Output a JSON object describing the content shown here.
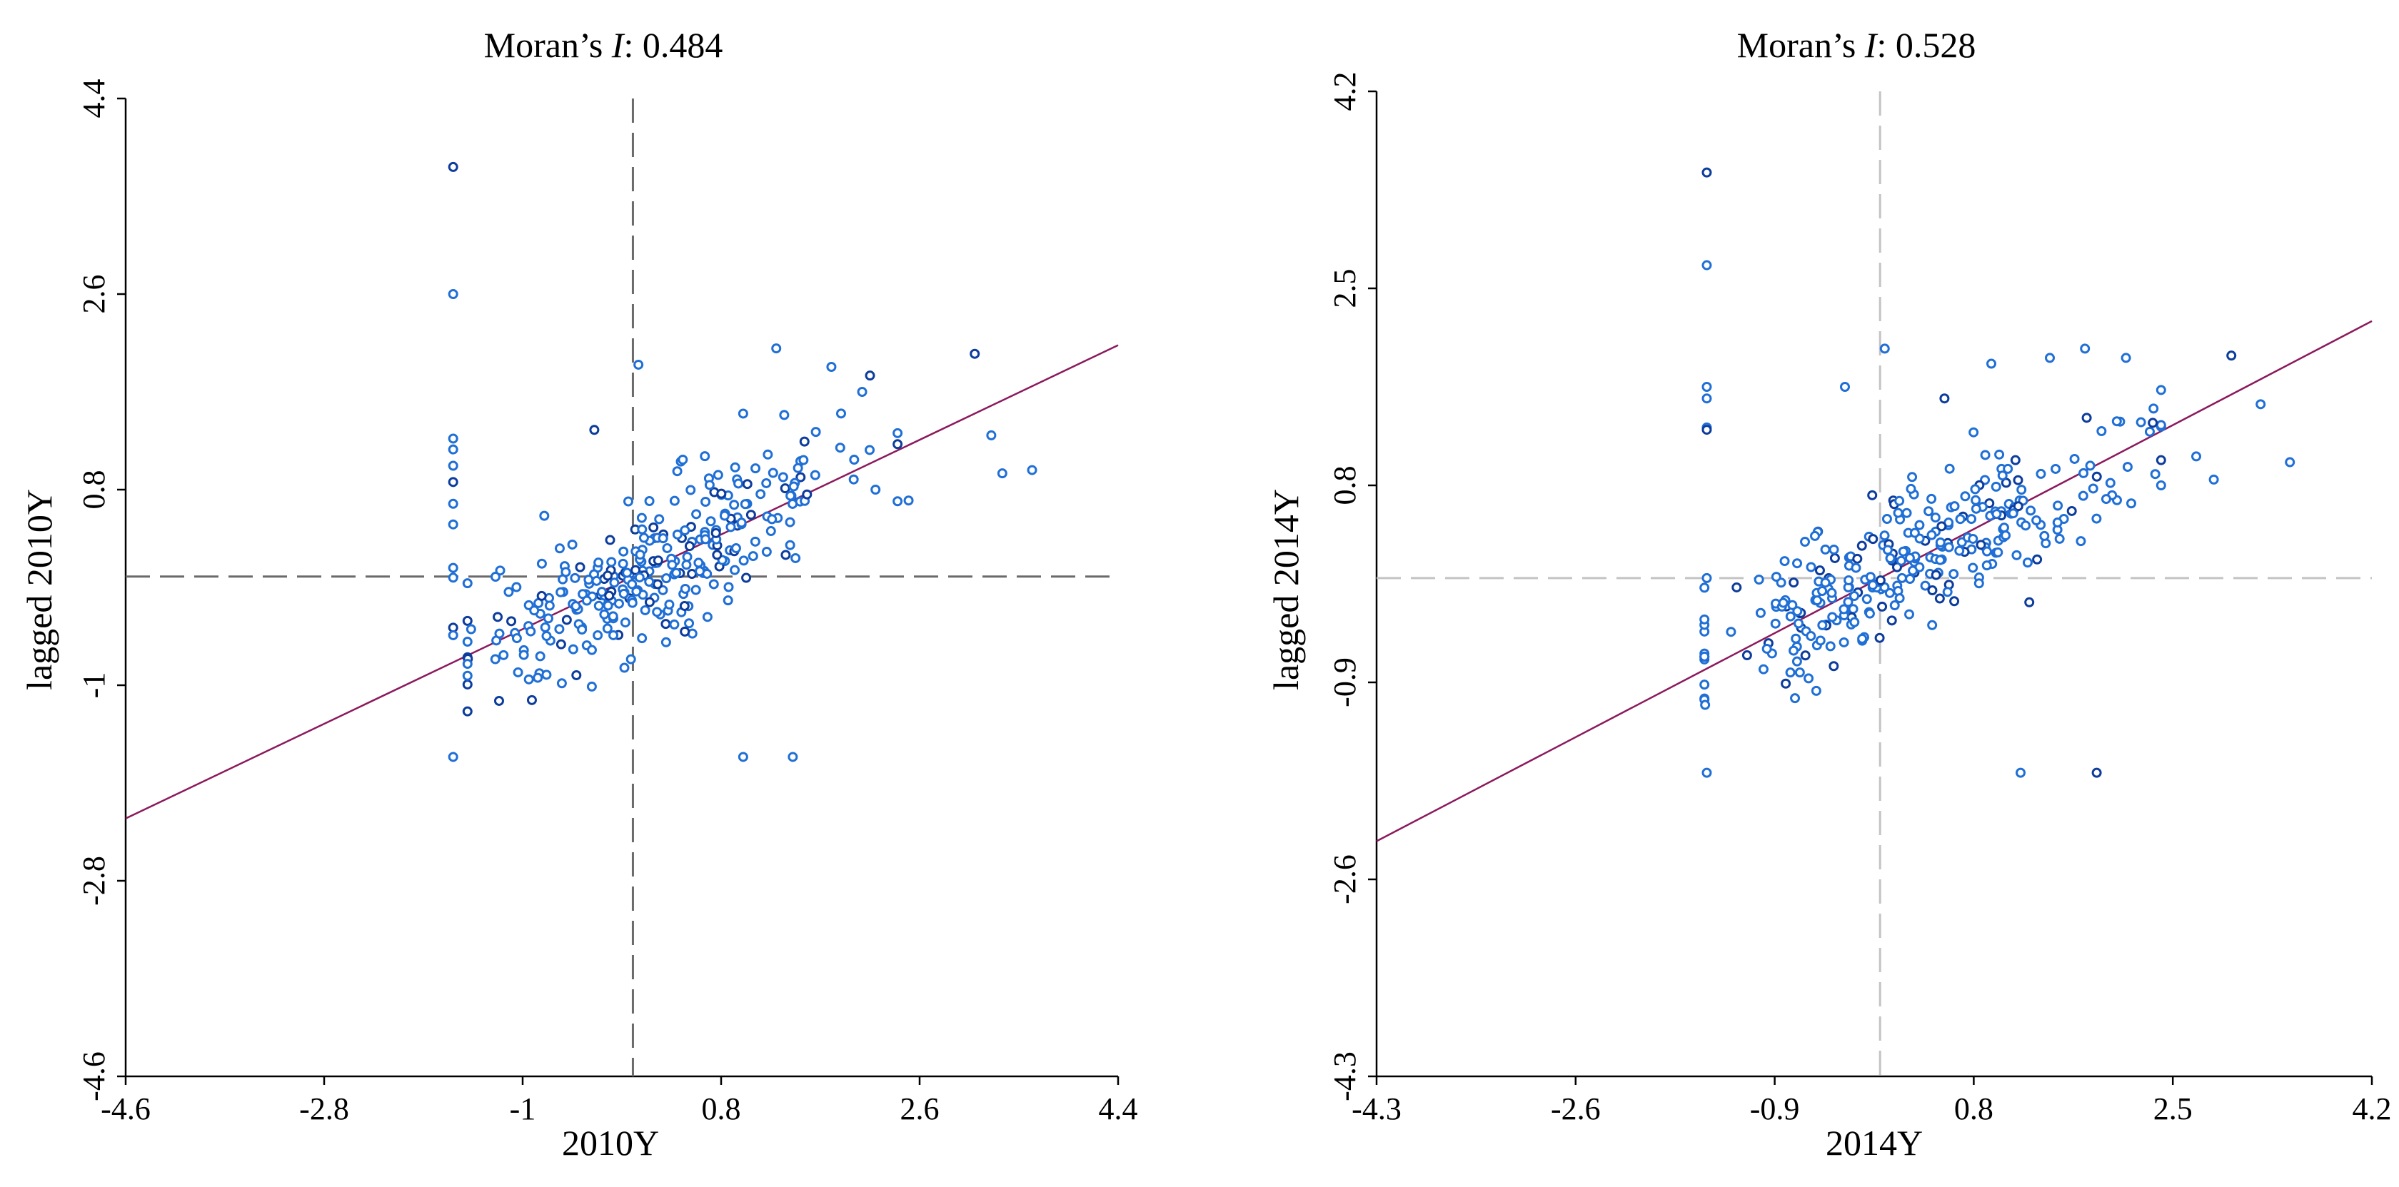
{
  "colors": {
    "point_stroke": "#1f6fd6",
    "point_stroke_dark": "#0c3c9c",
    "fit_line": "#8b1a5c",
    "mean_line_left": "#6a6a6a",
    "mean_line_right": "#c4c4c4"
  },
  "chart_data": [
    {
      "type": "scatter",
      "title_prefix": "Moran’s ",
      "title_italic": "I",
      "title_suffix": ": 0.484",
      "xlabel": "2010Y",
      "ylabel": "lagged 2010Y",
      "xlim": [
        -4.6,
        4.4
      ],
      "ylim": [
        -4.6,
        4.4
      ],
      "xticks": [
        -4.6,
        -2.8,
        -1,
        0.8,
        2.6,
        4.4
      ],
      "xtick_labels": [
        "-4.6",
        "-2.8",
        "-1",
        "0.8",
        "2.6",
        "4.4"
      ],
      "yticks": [
        -4.6,
        -2.8,
        -1,
        0.8,
        2.6,
        4.4
      ],
      "ytick_labels": [
        "-4.6",
        "-2.8",
        "-1",
        "0.8",
        "2.6",
        "4.4"
      ],
      "slope": 0.484,
      "mean_x": 0,
      "mean_y": 0,
      "seed": 2010,
      "cluster": {
        "count": 300,
        "x_mean": 0.25,
        "x_sd": 0.85,
        "y_noise": 0.55
      },
      "points": [
        [
          -1.63,
          3.77
        ],
        [
          -1.63,
          2.6
        ],
        [
          -1.63,
          1.27
        ],
        [
          -1.63,
          1.17
        ],
        [
          -1.63,
          1.02
        ],
        [
          -1.63,
          0.87
        ],
        [
          -1.63,
          0.67
        ],
        [
          -1.63,
          0.48
        ],
        [
          -1.63,
          0.08
        ],
        [
          -1.63,
          -0.01
        ],
        [
          -1.63,
          -0.47
        ],
        [
          -1.63,
          -0.54
        ],
        [
          -1.63,
          -1.66
        ],
        [
          1.0,
          -1.66
        ],
        [
          1.45,
          -1.66
        ],
        [
          3.1,
          2.05
        ],
        [
          3.25,
          1.3
        ],
        [
          3.62,
          0.98
        ],
        [
          3.35,
          0.95
        ],
        [
          2.4,
          1.32
        ],
        [
          2.15,
          1.85
        ],
        [
          1.8,
          1.93
        ],
        [
          1.3,
          2.1
        ],
        [
          0.05,
          1.95
        ],
        [
          1.0,
          1.5
        ],
        [
          -0.35,
          1.35
        ],
        [
          2.2,
          0.8
        ],
        [
          2.5,
          0.7
        ]
      ]
    },
    {
      "type": "scatter",
      "title_prefix": "Moran’s ",
      "title_italic": "I",
      "title_suffix": ": 0.528",
      "xlabel": "2014Y",
      "ylabel": "lagged 2014Y",
      "xlim": [
        -4.3,
        4.2
      ],
      "ylim": [
        -4.3,
        4.2
      ],
      "xticks": [
        -4.3,
        -2.6,
        -0.9,
        0.8,
        2.5,
        4.2
      ],
      "xtick_labels": [
        "-4.3",
        "-2.6",
        "-0.9",
        "0.8",
        "2.5",
        "4.2"
      ],
      "yticks": [
        -4.3,
        -2.6,
        -0.9,
        0.8,
        2.5,
        4.2
      ],
      "ytick_labels": [
        "-4.3",
        "-2.6",
        "-0.9",
        "0.8",
        "2.5",
        "4.2"
      ],
      "slope": 0.528,
      "mean_x": 0,
      "mean_y": 0,
      "seed": 2014,
      "cluster": {
        "count": 300,
        "x_mean": 0.2,
        "x_sd": 0.95,
        "y_noise": 0.55
      },
      "points": [
        [
          -1.48,
          3.5
        ],
        [
          -1.48,
          2.7
        ],
        [
          -1.48,
          1.65
        ],
        [
          -1.48,
          1.55
        ],
        [
          -1.48,
          1.3
        ],
        [
          -1.48,
          1.28
        ],
        [
          -1.48,
          0.0
        ],
        [
          -1.48,
          -1.68
        ],
        [
          0.04,
          1.98
        ],
        [
          -0.3,
          1.65
        ],
        [
          3.0,
          1.92
        ],
        [
          3.25,
          1.5
        ],
        [
          3.5,
          1.0
        ],
        [
          2.85,
          0.85
        ],
        [
          1.2,
          -1.68
        ],
        [
          1.85,
          -1.68
        ],
        [
          1.75,
          1.98
        ],
        [
          1.45,
          1.9
        ],
        [
          0.95,
          1.85
        ],
        [
          2.1,
          1.9
        ],
        [
          0.55,
          1.55
        ],
        [
          2.7,
          1.05
        ],
        [
          2.4,
          0.8
        ],
        [
          2.05,
          1.35
        ]
      ]
    }
  ]
}
